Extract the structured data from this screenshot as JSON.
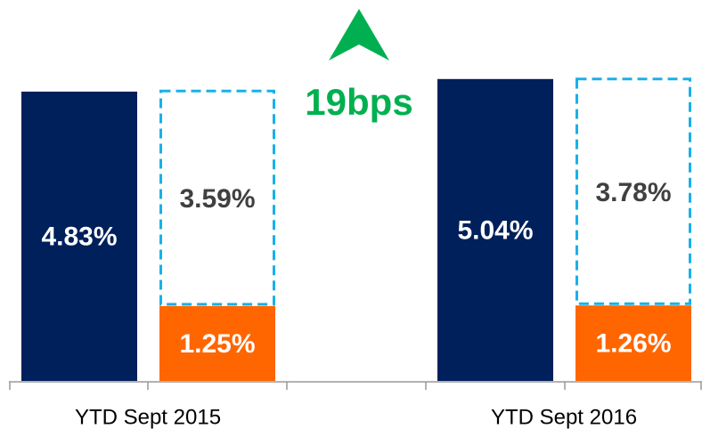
{
  "chart_data": {
    "type": "bar",
    "categories": [
      "YTD Sept 2015",
      "YTD Sept 2016"
    ],
    "series": [
      {
        "color": "#00205b",
        "values": [
          4.83,
          5.04
        ],
        "value_labels": [
          "4.83%",
          "5.04%"
        ]
      },
      {
        "color": "#ff6600",
        "values": [
          1.25,
          1.26
        ],
        "value_labels": [
          "1.25%",
          "1.26%"
        ],
        "stacked": true
      },
      {
        "color": "#1ab0e8",
        "values": [
          3.59,
          3.78
        ],
        "value_labels": [
          "3.59%",
          "3.78%"
        ],
        "stacked": true,
        "dashed": true
      }
    ],
    "ylim": [
      0,
      6.3
    ],
    "annotation": {
      "text": "19bps",
      "color": "#00b050"
    }
  }
}
